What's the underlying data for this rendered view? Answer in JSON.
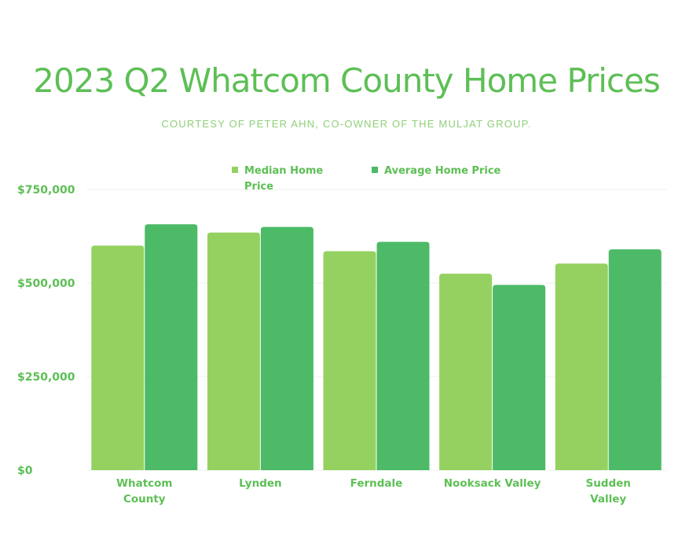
{
  "chart_data": {
    "type": "bar",
    "title": "2023 Q2 Whatcom County Home Prices",
    "subtitle": "COURTESY OF PETER AHN, CO-OWNER OF THE MULJAT GROUP.",
    "categories": [
      "Whatcom County",
      "Lynden",
      "Ferndale",
      "Nooksack Valley",
      "Sudden Valley"
    ],
    "category_lines": [
      [
        "Whatcom",
        "County"
      ],
      [
        "Lynden"
      ],
      [
        "Ferndale"
      ],
      [
        "Nooksack Valley"
      ],
      [
        "Sudden",
        "Valley"
      ]
    ],
    "series": [
      {
        "name": "Median Home Price",
        "name_lines": [
          "Median Home",
          "Price"
        ],
        "color": "#95d160",
        "values": [
          600000,
          635000,
          585000,
          525000,
          552000
        ]
      },
      {
        "name": "Average Home Price",
        "name_lines": [
          "Average Home Price"
        ],
        "color": "#4cba67",
        "values": [
          657000,
          650000,
          610000,
          495000,
          590000
        ]
      }
    ],
    "ylim": [
      0,
      750000
    ],
    "yticks": [
      0,
      250000,
      500000,
      750000
    ],
    "ytick_labels": [
      "$0",
      "$250,000",
      "$500,000",
      "$750,000"
    ],
    "grid": true,
    "legend_position": "top",
    "text_color": "#5dbf55"
  }
}
